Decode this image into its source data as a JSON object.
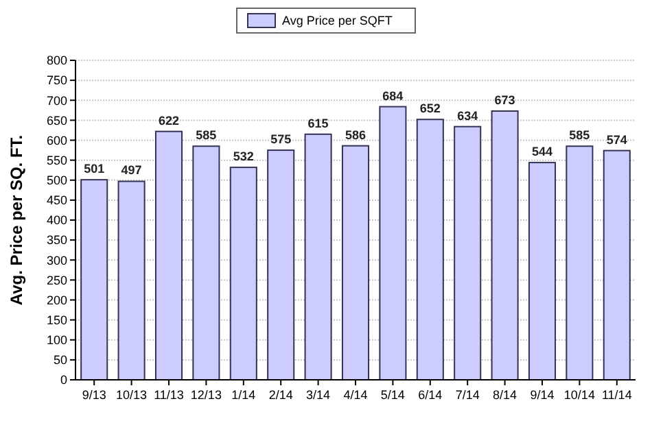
{
  "chart_data": {
    "type": "bar",
    "ylabel": "Avg. Price per SQ. FT.",
    "categories": [
      "9/13",
      "10/13",
      "11/13",
      "12/13",
      "1/14",
      "2/14",
      "3/14",
      "4/14",
      "5/14",
      "6/14",
      "7/14",
      "8/14",
      "9/14",
      "10/14",
      "11/14"
    ],
    "series": [
      {
        "name": "Avg Price per SQFT",
        "color": "#ccccff",
        "values": [
          501,
          497,
          622,
          585,
          532,
          575,
          615,
          586,
          684,
          652,
          634,
          673,
          544,
          585,
          574
        ]
      }
    ],
    "ylim": [
      0,
      800
    ],
    "yticks": [
      0,
      50,
      100,
      150,
      200,
      250,
      300,
      350,
      400,
      450,
      500,
      550,
      600,
      650,
      700,
      750,
      800
    ],
    "grid": "y",
    "legend": "top",
    "data_labels": true
  }
}
